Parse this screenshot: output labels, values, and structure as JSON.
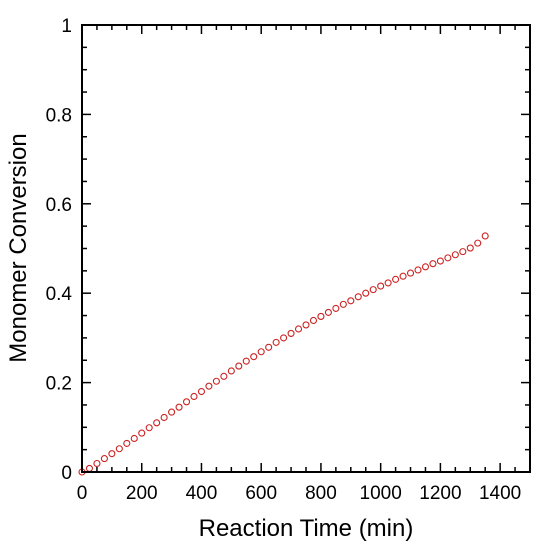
{
  "chart_data": {
    "type": "scatter",
    "title": "",
    "xlabel": "Reaction Time (min)",
    "ylabel": "Monomer Conversion",
    "xlim": [
      0,
      1500
    ],
    "ylim": [
      0,
      1
    ],
    "xticks": [
      0,
      200,
      400,
      600,
      800,
      1000,
      1200,
      1400
    ],
    "xtick_labels": [
      "0",
      "200",
      "400",
      "600",
      "800",
      "1000",
      "1200",
      "1400"
    ],
    "yticks": [
      0,
      0.2,
      0.4,
      0.6,
      0.8,
      1
    ],
    "ytick_labels": [
      "0",
      "0.2",
      "0.4",
      "0.6",
      "0.8",
      "1"
    ],
    "grid": false,
    "legend": "none",
    "marker_color": "#cc2222",
    "series": [
      {
        "marker": "open-circle",
        "x": [
          0,
          25,
          50,
          75,
          100,
          125,
          150,
          175,
          200,
          225,
          250,
          275,
          300,
          325,
          350,
          375,
          400,
          425,
          450,
          475,
          500,
          525,
          550,
          575,
          600,
          625,
          650,
          675,
          700,
          725,
          750,
          775,
          800,
          825,
          850,
          875,
          900,
          925,
          950,
          975,
          1000,
          1025,
          1050,
          1075,
          1100,
          1125,
          1150,
          1175,
          1200,
          1225,
          1250,
          1275,
          1300,
          1325,
          1350
        ],
        "y": [
          0.0,
          0.008,
          0.019,
          0.03,
          0.041,
          0.052,
          0.064,
          0.075,
          0.087,
          0.099,
          0.11,
          0.122,
          0.134,
          0.145,
          0.157,
          0.169,
          0.18,
          0.192,
          0.203,
          0.214,
          0.226,
          0.237,
          0.248,
          0.258,
          0.269,
          0.279,
          0.29,
          0.3,
          0.31,
          0.32,
          0.329,
          0.339,
          0.348,
          0.357,
          0.366,
          0.375,
          0.383,
          0.392,
          0.4,
          0.408,
          0.416,
          0.423,
          0.431,
          0.438,
          0.445,
          0.452,
          0.459,
          0.466,
          0.472,
          0.479,
          0.486,
          0.493,
          0.501,
          0.512,
          0.528
        ]
      }
    ]
  }
}
